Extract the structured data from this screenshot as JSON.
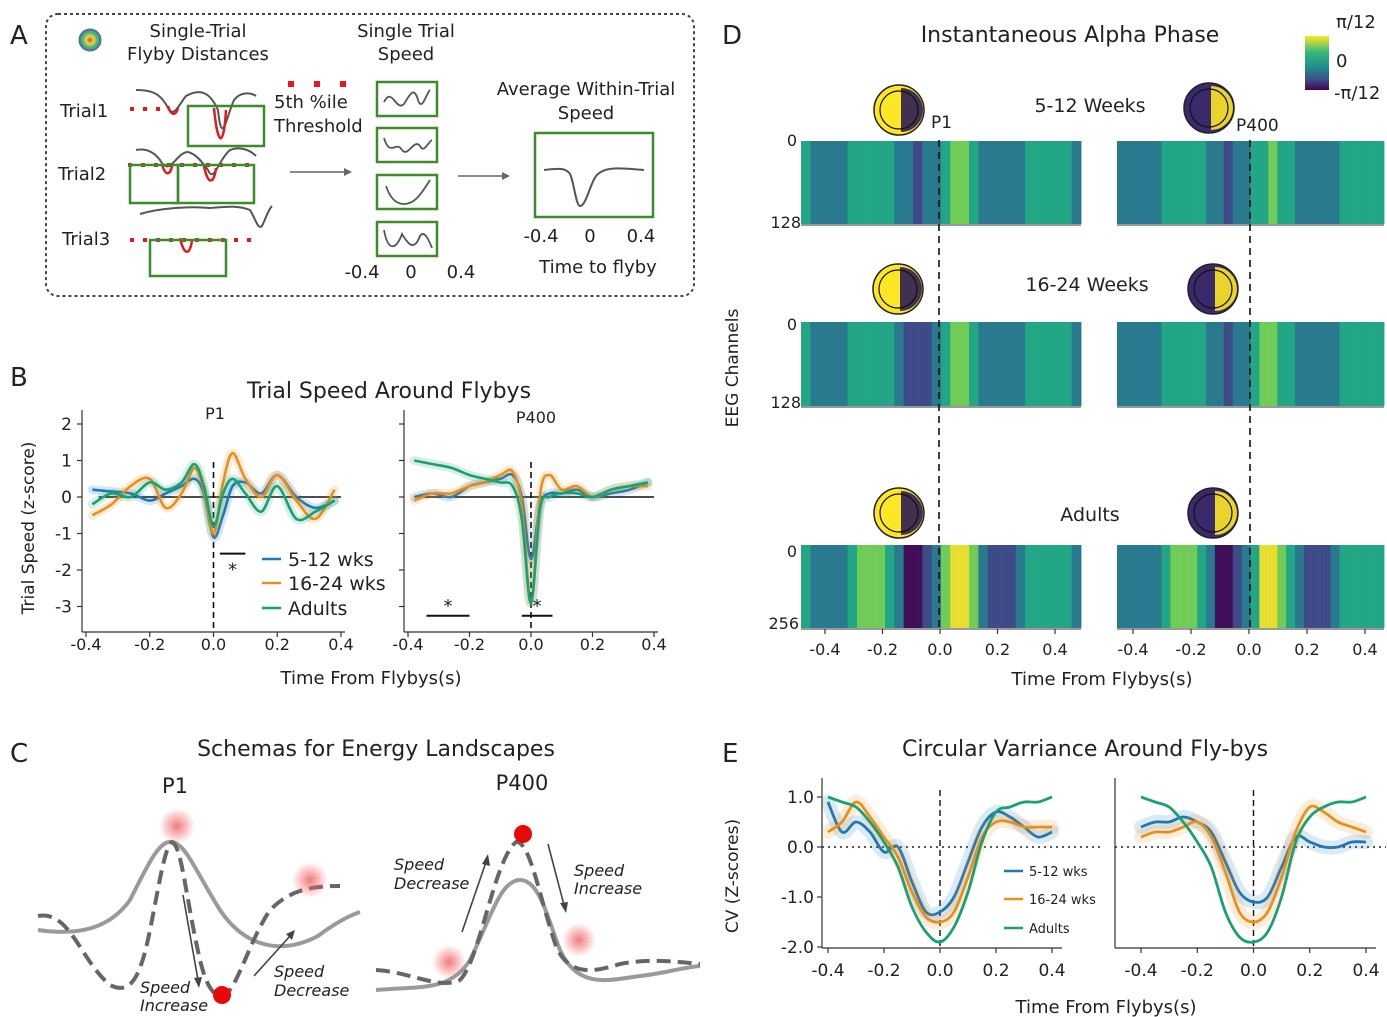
{
  "panel_letters": {
    "a": "A",
    "b": "B",
    "c": "C",
    "d": "D",
    "e": "E"
  },
  "colors": {
    "wks512": "#1f77b4",
    "wks1624": "#e8901a",
    "adults": "#1aa074",
    "box": "#3c8c2c",
    "threshold": "#e01b1b"
  },
  "panelA": {
    "flyby_title_1": "Single-Trial",
    "flyby_title_2": "Flyby Distances",
    "trials": [
      "Trial1",
      "Trial2",
      "Trial3"
    ],
    "threshold_1": "5th %ile",
    "threshold_2": "Threshold",
    "speed_title_1": "Single Trial",
    "speed_title_2": "Speed",
    "speed_ticks": [
      "-0.4",
      "0",
      "0.4"
    ],
    "avg_title_1": "Average Within-Trial",
    "avg_title_2": "Speed",
    "avg_ticks": [
      "-0.4",
      "0",
      "0.4"
    ],
    "avg_xlabel": "Time to flyby"
  },
  "panelC": {
    "title": "Schemas for Energy Landscapes",
    "left_title": "P1",
    "right_title": "P400",
    "left_down_1": "Speed",
    "left_down_2": "Increase",
    "left_up_1": "Speed",
    "left_up_2": "Decrease",
    "right_up_1": "Speed",
    "right_up_2": "Decrease",
    "right_down_1": "Speed",
    "right_down_2": "Increase"
  },
  "panelD": {
    "title": "Instantaneous Alpha Phase",
    "colorbar_ticks": [
      "π/12",
      "0",
      "-π/12"
    ],
    "row_labels": [
      "5-12 Weeks",
      "16-24 Weeks",
      "Adults"
    ],
    "p1_label": "P1",
    "p400_label": "P400",
    "y_top": [
      "0",
      "0",
      "0"
    ],
    "y_bottom": [
      "128",
      "128",
      "256"
    ],
    "ylabel": "EEG Channels",
    "xticks": [
      "-0.4",
      "-0.2",
      "0.0",
      "0.2",
      "0.4"
    ],
    "xlabel": "Time From Flybys(s)"
  },
  "chart_data": [
    {
      "type": "line",
      "id": "trial-speed",
      "title": "Trial Speed Around Flybys",
      "subplot_titles": [
        "P1",
        "P400"
      ],
      "xlabel": "Time From Flybys(s)",
      "ylabel": "Trial Speed (z-score)",
      "xlim": [
        -0.4,
        0.4
      ],
      "ylim": [
        -3.2,
        2.2
      ],
      "xticks": [
        -0.4,
        -0.2,
        0.0,
        0.2,
        0.4
      ],
      "xtick_labels": [
        "-0.4",
        "-0.2",
        "0.0",
        "0.2",
        "0.4"
      ],
      "yticks": [
        2,
        1,
        0,
        -1,
        -2,
        -3
      ],
      "ytick_labels": [
        "2",
        "1",
        "0",
        "-1",
        "-2",
        "-3"
      ],
      "legend": [
        "5-12 wks",
        "16-24 wks",
        "Adults"
      ],
      "legend_position": "lower-right of left subplot",
      "significance_marker": "*",
      "significance_bars": [
        {
          "subplot": 0,
          "x": [
            0.02,
            0.1
          ],
          "y": -1.55
        },
        {
          "subplot": 1,
          "x": [
            -0.34,
            -0.2
          ],
          "y": -3.2
        },
        {
          "subplot": 1,
          "x": [
            -0.03,
            0.07
          ],
          "y": -3.2
        }
      ],
      "x": [
        -0.38,
        -0.32,
        -0.26,
        -0.2,
        -0.15,
        -0.1,
        -0.06,
        -0.03,
        0.0,
        0.03,
        0.06,
        0.1,
        0.15,
        0.2,
        0.26,
        0.32,
        0.38
      ],
      "subplots": [
        {
          "name": "P1",
          "series": [
            {
              "name": "5-12 wks",
              "values": [
                0.2,
                0.15,
                0.1,
                -0.1,
                0.1,
                0.3,
                0.5,
                0.1,
                -1.1,
                -0.5,
                0.3,
                0.4,
                0.1,
                0.6,
                0.0,
                -0.3,
                -0.1
              ]
            },
            {
              "name": "16-24 wks",
              "values": [
                -0.5,
                -0.2,
                0.3,
                0.5,
                -0.3,
                0.1,
                0.8,
                0.2,
                -1.0,
                0.4,
                1.2,
                0.5,
                0.0,
                0.6,
                -0.1,
                -0.6,
                0.2
              ]
            },
            {
              "name": "Adults",
              "values": [
                -0.2,
                0.1,
                0.0,
                0.4,
                0.2,
                0.4,
                0.9,
                0.3,
                -0.8,
                0.1,
                0.5,
                0.1,
                -0.4,
                0.3,
                -0.6,
                -0.4,
                -0.1
              ]
            }
          ]
        },
        {
          "name": "P400",
          "series": [
            {
              "name": "5-12 wks",
              "values": [
                0.0,
                0.1,
                0.0,
                0.3,
                0.4,
                0.5,
                0.6,
                0.0,
                -1.7,
                -0.2,
                0.1,
                0.1,
                0.2,
                0.0,
                0.1,
                0.2,
                0.4
              ]
            },
            {
              "name": "16-24 wks",
              "values": [
                -0.1,
                0.1,
                0.1,
                0.3,
                0.4,
                0.6,
                0.7,
                -0.2,
                -2.9,
                0.1,
                0.6,
                0.2,
                0.3,
                0.0,
                0.2,
                0.3,
                0.3
              ]
            },
            {
              "name": "Adults",
              "values": [
                1.0,
                0.9,
                0.8,
                0.6,
                0.5,
                0.4,
                0.3,
                -0.6,
                -2.9,
                -0.3,
                0.0,
                0.1,
                0.1,
                0.0,
                0.2,
                0.3,
                0.4
              ]
            }
          ]
        }
      ]
    },
    {
      "type": "line",
      "id": "circular-variance",
      "title": "Circular Varriance Around Fly-bys",
      "xlabel": "Time From Flybys(s)",
      "ylabel": "CV (Z-scores)",
      "xlim": [
        -0.42,
        0.42
      ],
      "ylim": [
        -2.0,
        1.1
      ],
      "xticks": [
        -0.4,
        -0.2,
        0.0,
        0.2,
        0.4
      ],
      "xtick_labels": [
        "-0.4",
        "-0.2",
        "0.0",
        "0.2",
        "0.4"
      ],
      "yticks": [
        1.0,
        0.0,
        -1.0,
        -2.0
      ],
      "ytick_labels": [
        "1.0",
        "0.0",
        "-1.0",
        "-2.0"
      ],
      "legend": [
        "5-12 wks",
        "16-24 wks",
        "Adults"
      ],
      "legend_position": "lower-right of left subplot",
      "x": [
        -0.4,
        -0.35,
        -0.3,
        -0.25,
        -0.2,
        -0.15,
        -0.1,
        -0.05,
        0.0,
        0.05,
        0.1,
        0.15,
        0.2,
        0.25,
        0.3,
        0.35,
        0.4
      ],
      "subplots": [
        {
          "name": "left",
          "series": [
            {
              "name": "5-12 wks",
              "values": [
                0.9,
                0.3,
                0.5,
                0.3,
                -0.1,
                0.0,
                -0.7,
                -1.3,
                -1.3,
                -1.0,
                -0.3,
                0.4,
                0.7,
                0.6,
                0.4,
                0.2,
                0.3
              ]
            },
            {
              "name": "16-24 wks",
              "values": [
                0.3,
                0.5,
                0.9,
                0.6,
                0.2,
                -0.2,
                -0.9,
                -1.4,
                -1.5,
                -1.3,
                -0.6,
                0.2,
                0.5,
                0.5,
                0.4,
                0.4,
                0.4
              ]
            },
            {
              "name": "Adults",
              "values": [
                1.0,
                0.9,
                0.8,
                0.5,
                0.1,
                -0.4,
                -1.2,
                -1.7,
                -1.9,
                -1.6,
                -0.9,
                0.1,
                0.7,
                0.8,
                0.9,
                0.9,
                1.0
              ]
            }
          ]
        },
        {
          "name": "right",
          "series": [
            {
              "name": "5-12 wks",
              "values": [
                0.4,
                0.5,
                0.5,
                0.6,
                0.5,
                0.3,
                -0.3,
                -0.9,
                -1.1,
                -1.0,
                -0.4,
                0.2,
                0.1,
                0.0,
                0.0,
                0.1,
                0.1
              ]
            },
            {
              "name": "16-24 wks",
              "values": [
                0.2,
                0.3,
                0.3,
                0.4,
                0.5,
                0.2,
                -0.5,
                -1.3,
                -1.5,
                -1.3,
                -0.6,
                0.3,
                0.8,
                0.7,
                0.5,
                0.4,
                0.3
              ]
            },
            {
              "name": "Adults",
              "values": [
                1.0,
                0.9,
                0.8,
                0.5,
                0.1,
                -0.4,
                -1.3,
                -1.8,
                -1.9,
                -1.7,
                -1.0,
                0.1,
                0.6,
                0.8,
                0.9,
                0.9,
                1.0
              ]
            }
          ]
        }
      ]
    }
  ]
}
